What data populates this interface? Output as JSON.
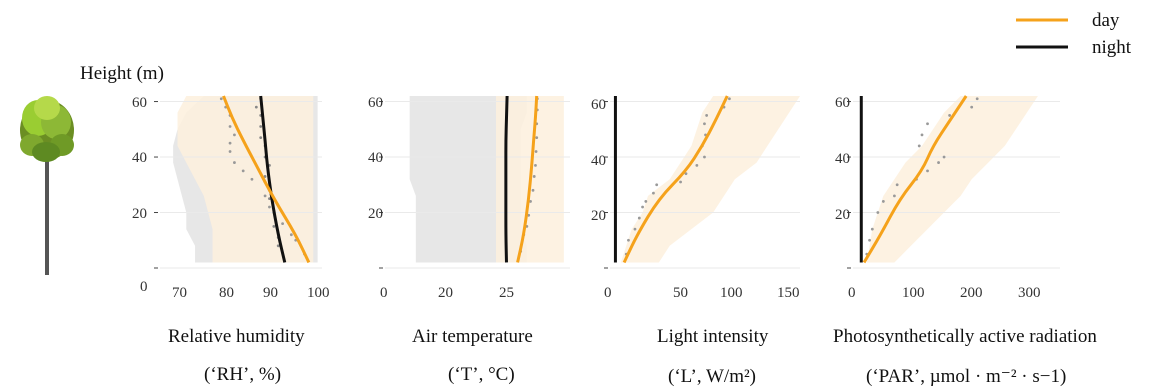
{
  "y_axis_label": "Height (m)",
  "legend": [
    {
      "label": "day",
      "color": "#F5A21B"
    },
    {
      "label": "night",
      "color": "#111111"
    }
  ],
  "colors": {
    "day_band": "#FDF0DD",
    "night_band": "#E3E3E3",
    "grid": "#EAEAEA"
  },
  "icon": "tree-icon",
  "chart_data": [
    {
      "type": "line",
      "name": "rh",
      "xlabel": "Relative  humidity",
      "xunit": "(‘RH’, %)",
      "x_ticks": [
        70,
        80,
        90,
        100
      ],
      "y_ticks": [
        0,
        20,
        40,
        60
      ],
      "xlim": [
        64,
        101
      ],
      "ylim": [
        0,
        62
      ],
      "series": [
        {
          "name": "day",
          "x": [
            98,
            95,
            90,
            86,
            83,
            80.5,
            78.5
          ],
          "y": [
            2,
            12,
            25,
            37,
            46,
            54,
            62
          ]
        },
        {
          "name": "night",
          "x": [
            92.5,
            91,
            89.5,
            88.5,
            88,
            87.5,
            87
          ],
          "y": [
            2,
            12,
            25,
            37,
            46,
            54,
            62
          ]
        }
      ],
      "points_day": [
        [
          97,
          5
        ],
        [
          95,
          10
        ],
        [
          94,
          12
        ],
        [
          92,
          16
        ],
        [
          89,
          22
        ],
        [
          88,
          26
        ],
        [
          85,
          32
        ],
        [
          83,
          35
        ],
        [
          81,
          38
        ],
        [
          80,
          42
        ],
        [
          80,
          45
        ],
        [
          81,
          48
        ],
        [
          80,
          51
        ],
        [
          80,
          55
        ],
        [
          79,
          58
        ],
        [
          78,
          61
        ]
      ],
      "points_night": [
        [
          91,
          8
        ],
        [
          91,
          11
        ],
        [
          90,
          15
        ],
        [
          90,
          20
        ],
        [
          89,
          25
        ],
        [
          89,
          28
        ],
        [
          88,
          31
        ],
        [
          88,
          33
        ],
        [
          89,
          37
        ],
        [
          88,
          40
        ],
        [
          88,
          44
        ],
        [
          87,
          47
        ],
        [
          87,
          51
        ],
        [
          87,
          55
        ],
        [
          86,
          58
        ],
        [
          87,
          61
        ]
      ],
      "band_day": [
        [
          76,
          99
        ],
        [
          76,
          99
        ],
        [
          76,
          99
        ],
        [
          75,
          99
        ],
        [
          74,
          99
        ],
        [
          72,
          99
        ],
        [
          70,
          99
        ],
        [
          68,
          99
        ],
        [
          68,
          99
        ],
        [
          68,
          99
        ],
        [
          70,
          99
        ]
      ],
      "band_night": [
        [
          72,
          100
        ],
        [
          72,
          100
        ],
        [
          70,
          100
        ],
        [
          70,
          100
        ],
        [
          69,
          100
        ],
        [
          68,
          100
        ],
        [
          67,
          100
        ],
        [
          67,
          100
        ],
        [
          68,
          100
        ],
        [
          70,
          100
        ],
        [
          74,
          100
        ]
      ]
    },
    {
      "type": "line",
      "name": "temp",
      "xlabel": "Air  temperature",
      "xunit": "(‘T’, °C)",
      "x_ticks": [
        0,
        25
      ],
      "x_ticks_extra": [
        10,
        20
      ],
      "xlim": [
        0,
        30
      ],
      "ylim": [
        0,
        62
      ],
      "series": [
        {
          "name": "day",
          "x": [
            21.5,
            22.5,
            23.3,
            23.8,
            24.1,
            24.4,
            24.6
          ],
          "y": [
            2,
            12,
            25,
            37,
            46,
            54,
            62
          ]
        },
        {
          "name": "night",
          "x": [
            19.7,
            19.6,
            19.6,
            19.6,
            19.6,
            19.7,
            19.8
          ],
          "y": [
            2,
            12,
            25,
            37,
            46,
            54,
            62
          ]
        }
      ],
      "points_day": [
        [
          22,
          6
        ],
        [
          22.5,
          12
        ],
        [
          23,
          15
        ],
        [
          23.3,
          19
        ],
        [
          23.6,
          24
        ],
        [
          24,
          28
        ],
        [
          24.2,
          33
        ],
        [
          24.4,
          37
        ],
        [
          24.5,
          42
        ],
        [
          24.6,
          47
        ],
        [
          24.6,
          52
        ],
        [
          24.7,
          57
        ],
        [
          24.7,
          61
        ]
      ],
      "points_night": [],
      "band_day": [
        [
          18,
          29
        ],
        [
          18,
          29
        ],
        [
          18,
          29
        ],
        [
          18,
          29
        ],
        [
          18,
          29
        ],
        [
          18,
          29
        ],
        [
          18,
          29
        ],
        [
          18,
          29
        ],
        [
          18,
          29
        ],
        [
          18,
          29
        ],
        [
          18,
          29
        ]
      ],
      "band_night": [
        [
          5,
          23
        ],
        [
          5,
          23
        ],
        [
          5,
          22
        ],
        [
          5,
          22
        ],
        [
          5,
          22
        ],
        [
          4,
          22
        ],
        [
          4,
          22
        ],
        [
          4,
          22
        ],
        [
          4,
          22
        ],
        [
          4,
          23
        ],
        [
          4,
          23
        ]
      ]
    },
    {
      "type": "line",
      "name": "light",
      "xlabel": "Light  intensity",
      "xunit": "(‘L’, W/m²)",
      "x_ticks": [
        0,
        50,
        100,
        150
      ],
      "y_ticks": [
        0,
        20,
        40,
        60
      ],
      "xlim": [
        -5,
        170
      ],
      "ylim": [
        0,
        62
      ],
      "series": [
        {
          "name": "day",
          "x": [
            8,
            20,
            40,
            65,
            80,
            92,
            103
          ],
          "y": [
            2,
            12,
            25,
            35,
            44,
            53,
            62
          ]
        },
        {
          "name": "night",
          "x": [
            0,
            0,
            0,
            0,
            0,
            0,
            0
          ],
          "y": [
            2,
            12,
            25,
            35,
            44,
            53,
            62
          ]
        }
      ],
      "points_day": [
        [
          10,
          5
        ],
        [
          12,
          10
        ],
        [
          18,
          14
        ],
        [
          22,
          18
        ],
        [
          25,
          22
        ],
        [
          28,
          24
        ],
        [
          35,
          27
        ],
        [
          38,
          30
        ],
        [
          60,
          31
        ],
        [
          65,
          34
        ],
        [
          75,
          37
        ],
        [
          82,
          40
        ],
        [
          80,
          44
        ],
        [
          83,
          48
        ],
        [
          82,
          52
        ],
        [
          84,
          55
        ],
        [
          100,
          58
        ],
        [
          105,
          61
        ]
      ],
      "points_night": [],
      "band_day": [
        [
          5,
          40
        ],
        [
          10,
          50
        ],
        [
          15,
          70
        ],
        [
          25,
          90
        ],
        [
          30,
          100
        ],
        [
          50,
          110
        ],
        [
          60,
          130
        ],
        [
          70,
          140
        ],
        [
          75,
          150
        ],
        [
          80,
          160
        ],
        [
          90,
          170
        ]
      ],
      "band_night": []
    },
    {
      "type": "line",
      "name": "par",
      "xlabel": "Photosynthetically active radiation",
      "xunit": "(‘PAR’, µmol · m⁻² · s−1)",
      "x_ticks": [
        0,
        100,
        200,
        300
      ],
      "y_ticks": [
        0,
        20,
        40,
        60
      ],
      "xlim": [
        -15,
        360
      ],
      "ylim": [
        0,
        62
      ],
      "series": [
        {
          "name": "day",
          "x": [
            5,
            35,
            70,
            110,
            130,
            160,
            190
          ],
          "y": [
            2,
            12,
            25,
            35,
            44,
            53,
            62
          ]
        },
        {
          "name": "night",
          "x": [
            0,
            0,
            0,
            0,
            0,
            0,
            0
          ],
          "y": [
            2,
            12,
            25,
            35,
            44,
            53,
            62
          ]
        }
      ],
      "points_day": [
        [
          10,
          5
        ],
        [
          15,
          10
        ],
        [
          20,
          14
        ],
        [
          30,
          20
        ],
        [
          40,
          24
        ],
        [
          60,
          26
        ],
        [
          65,
          30
        ],
        [
          100,
          32
        ],
        [
          120,
          35
        ],
        [
          140,
          38
        ],
        [
          150,
          40
        ],
        [
          105,
          44
        ],
        [
          110,
          48
        ],
        [
          120,
          52
        ],
        [
          160,
          55
        ],
        [
          200,
          58
        ],
        [
          210,
          61
        ]
      ],
      "points_night": [],
      "band_day": [
        [
          10,
          60
        ],
        [
          15,
          90
        ],
        [
          20,
          120
        ],
        [
          30,
          150
        ],
        [
          40,
          180
        ],
        [
          60,
          200
        ],
        [
          80,
          230
        ],
        [
          110,
          260
        ],
        [
          130,
          280
        ],
        [
          150,
          300
        ],
        [
          180,
          320
        ]
      ],
      "band_night": []
    }
  ]
}
